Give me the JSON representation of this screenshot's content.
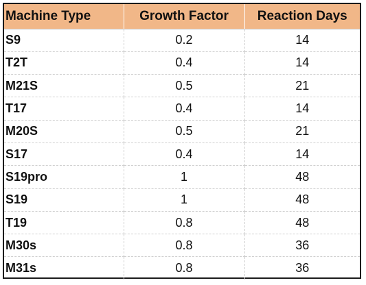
{
  "table": {
    "headers": [
      "Machine Type",
      "Growth Factor",
      "Reaction Days"
    ],
    "rows": [
      [
        "S9",
        "0.2",
        "14"
      ],
      [
        "T2T",
        "0.4",
        "14"
      ],
      [
        "M21S",
        "0.5",
        "21"
      ],
      [
        "T17",
        "0.4",
        "14"
      ],
      [
        "M20S",
        "0.5",
        "21"
      ],
      [
        "S17",
        "0.4",
        "14"
      ],
      [
        "S19pro",
        "1",
        "48"
      ],
      [
        "S19",
        "1",
        "48"
      ],
      [
        "T19",
        "0.8",
        "48"
      ],
      [
        "M30s",
        "0.8",
        "36"
      ],
      [
        "M31s",
        "0.8",
        "36"
      ]
    ]
  },
  "colors": {
    "header_background": "#f1b788",
    "border": "#1a1a1a",
    "grid": "#cfcfcf"
  }
}
